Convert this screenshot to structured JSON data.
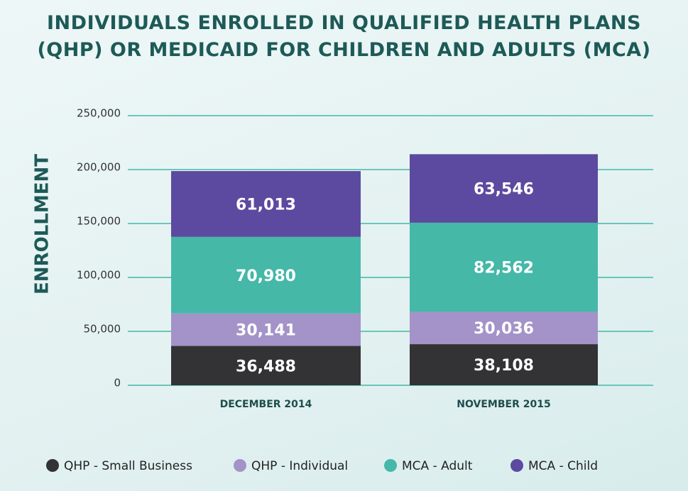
{
  "chart_data": {
    "type": "stacked_bar",
    "title": "INDIVIDUALS ENROLLED IN QUALIFIED HEALTH PLANS (QHP) OR MEDICAID FOR CHILDREN AND ADULTS (MCA)",
    "ylabel": "ENROLLMENT",
    "categories": [
      "DECEMBER 2014",
      "NOVEMBER 2015"
    ],
    "series": [
      {
        "name": "QHP - Small Business",
        "color": "#333235",
        "values": [
          36488,
          38108
        ],
        "value_labels": [
          "36,488",
          "38,108"
        ]
      },
      {
        "name": "QHP - Individual",
        "color": "#a393c8",
        "values": [
          30141,
          30036
        ],
        "value_labels": [
          "30,141",
          "30,036"
        ]
      },
      {
        "name": "MCA - Adult",
        "color": "#45b8a8",
        "values": [
          70980,
          82562
        ],
        "value_labels": [
          "70,980",
          "82,562"
        ]
      },
      {
        "name": "MCA - Child",
        "color": "#5b4a9f",
        "values": [
          61013,
          63546
        ],
        "value_labels": [
          "61,013",
          "63,546"
        ]
      }
    ],
    "ylim": [
      0,
      250000
    ],
    "yticks": [
      0,
      {
        "value": 50000,
        "label": "50,000"
      },
      {
        "value": 100000,
        "label": "100,000"
      },
      {
        "value": 150000,
        "label": "150,000"
      },
      {
        "value": 200000,
        "label": "200,000"
      },
      {
        "value": 250000,
        "label": "250,000"
      }
    ],
    "grid": true,
    "grid_color": "#45b8a8",
    "legend": "bottom"
  }
}
